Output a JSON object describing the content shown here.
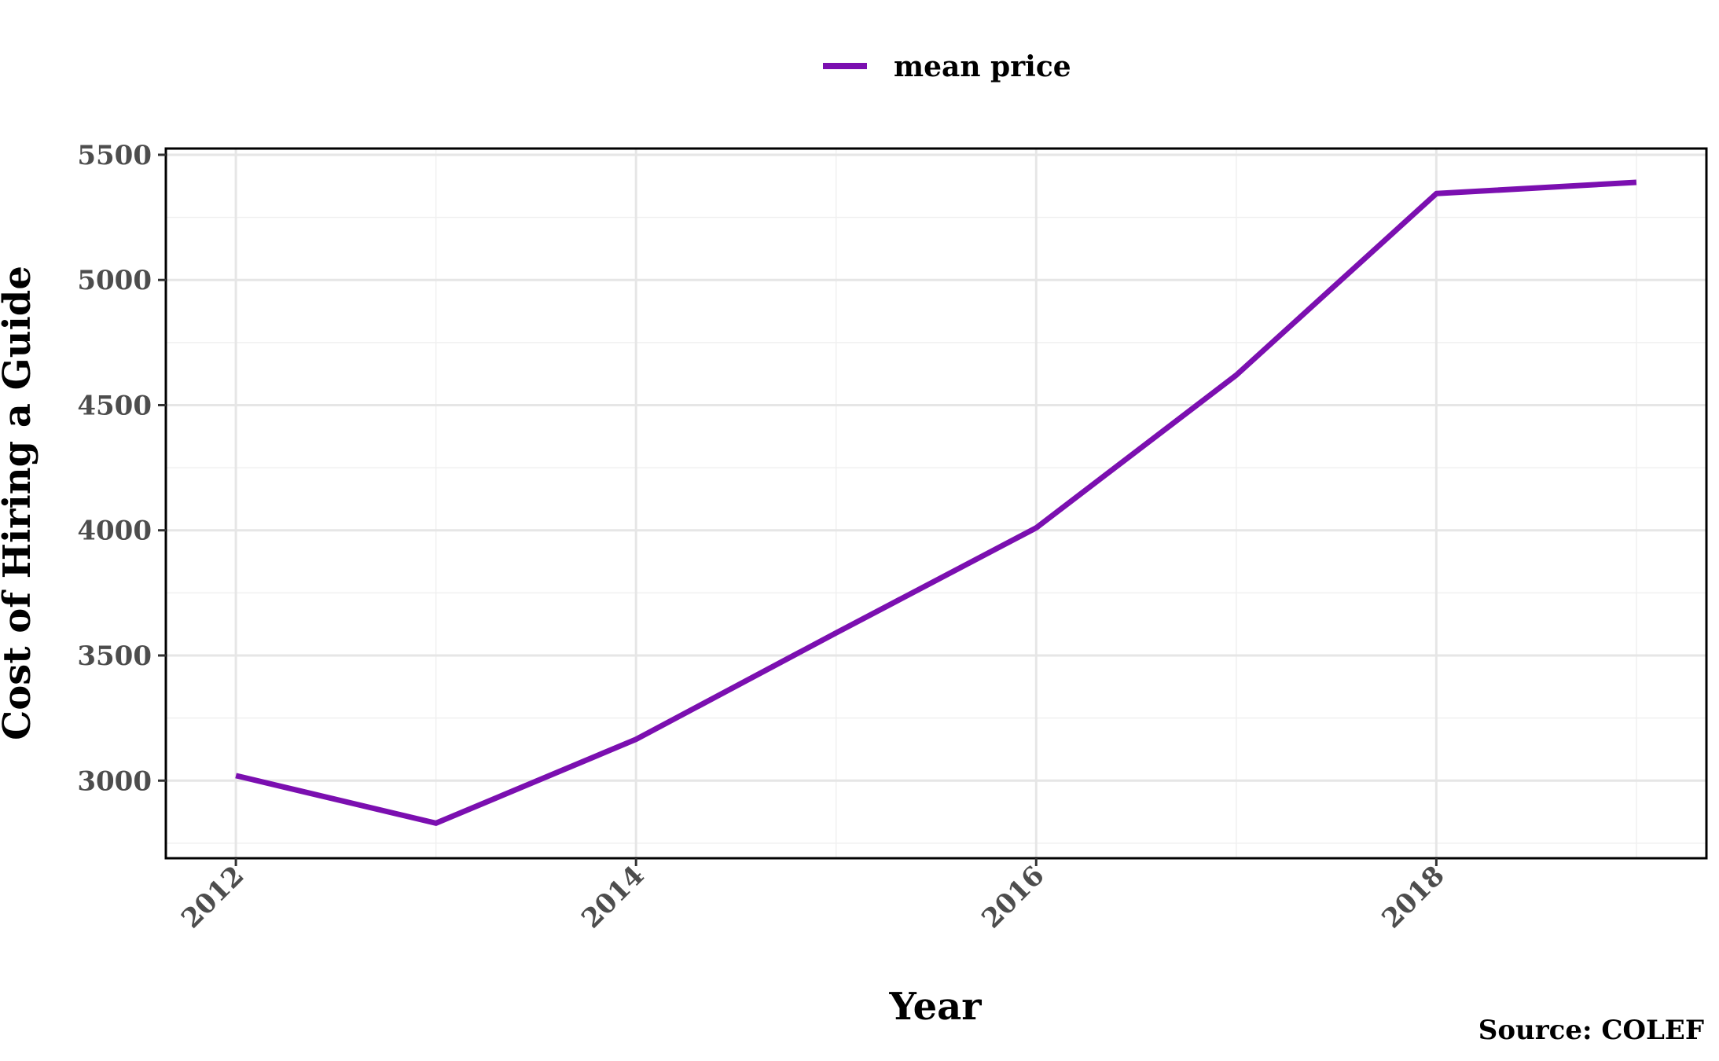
{
  "chart_data": {
    "type": "line",
    "x": [
      2012,
      2013,
      2014,
      2015,
      2016,
      2017,
      2018,
      2019
    ],
    "series": [
      {
        "name": "mean price",
        "color": "#7b0fb0",
        "values": [
          3020,
          2830,
          3165,
          3590,
          4010,
          4620,
          5345,
          5390
        ]
      }
    ],
    "xlabel": "Year",
    "ylabel": "Cost of Hiring a Guide",
    "caption": "Source: COLEF",
    "xlim": [
      2011.65,
      2019.35
    ],
    "ylim": [
      2690,
      5525
    ],
    "xticks": [
      2012,
      2014,
      2016,
      2018
    ],
    "xtick_labels": [
      "2012",
      "2014",
      "2016",
      "2018"
    ],
    "xminor": [
      2013,
      2015,
      2017,
      2019
    ],
    "yticks": [
      3000,
      3500,
      4000,
      4500,
      5000,
      5500
    ],
    "ytick_labels": [
      "3000",
      "3500",
      "4000",
      "4500",
      "5000",
      "5500"
    ],
    "yminor": [
      2750,
      3250,
      3750,
      4250,
      4750,
      5250
    ],
    "grid": true,
    "legend_position": "top"
  }
}
